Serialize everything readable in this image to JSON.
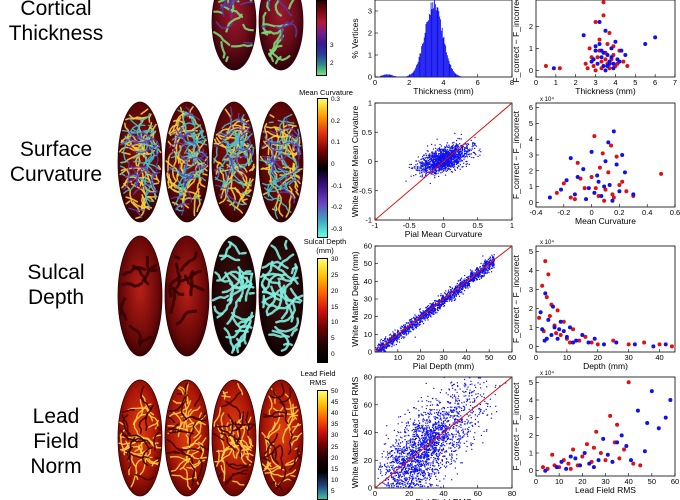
{
  "rows": [
    {
      "label_lines": [
        "Cortical",
        "Thickness"
      ]
    },
    {
      "label_lines": [
        "Surface",
        "Curvature"
      ]
    },
    {
      "label_lines": [
        "Sulcal",
        "Depth"
      ]
    },
    {
      "label_lines": [
        "Lead",
        "Field",
        "Norm"
      ]
    }
  ],
  "colorbars": [
    {
      "title": "",
      "ticks": [
        "3",
        "2"
      ],
      "colors": [
        "#300000",
        "#7a0a10",
        "#b3183c",
        "#7a1a8a",
        "#3a1b8c",
        "#2a3a9a",
        "#2a8a8a",
        "#7adf7a"
      ]
    },
    {
      "title": "Mean Curvature",
      "ticks": [
        "0.3",
        "0.2",
        "0.1",
        "0",
        "-0.1",
        "-0.2",
        "-0.3"
      ],
      "colors": [
        "#ffff60",
        "#ff9a00",
        "#e03010",
        "#7a0000",
        "#000000",
        "#3a1080",
        "#6a40c0",
        "#40a0c0",
        "#60ffe0"
      ]
    },
    {
      "title": "Sulcal Depth (mm)",
      "ticks": [
        "30",
        "25",
        "20",
        "15",
        "10",
        "5",
        "0"
      ],
      "colors": [
        "#ffff70",
        "#ffc000",
        "#ff6000",
        "#d01010",
        "#700000",
        "#200000",
        "#000000"
      ]
    },
    {
      "title": "Lead Field RMS",
      "ticks": [
        "50",
        "45",
        "40",
        "35",
        "30",
        "25",
        "20",
        "15",
        "10",
        "5"
      ],
      "colors": [
        "#ffff70",
        "#ffc000",
        "#ff6000",
        "#d01010",
        "#700000",
        "#200000",
        "#000000",
        "#204080",
        "#40c0a0"
      ]
    }
  ],
  "chart_data": [
    {
      "type": "bar",
      "title": "",
      "xlabel": "Thickness (mm)",
      "ylabel": "% Vertices",
      "x_ticks": [
        "0",
        "2",
        "4",
        "6",
        "8"
      ],
      "y_ticks": [
        "0",
        "1",
        "2",
        "3"
      ],
      "xlim": [
        0,
        8
      ],
      "ylim": [
        0,
        3.5
      ],
      "bin_width": 0.05,
      "distribution": {
        "mean": 3.4,
        "sd": 0.52,
        "peak": 3.3
      },
      "color": "#1010ee"
    },
    {
      "type": "scatter",
      "xlabel": "Thickness (mm)",
      "ylabel": "F_correct − F_incorrect",
      "x_ticks": [
        "0",
        "1",
        "2",
        "3",
        "4",
        "5",
        "6",
        "7"
      ],
      "y_ticks": [
        "0",
        "1",
        "2"
      ],
      "xlim": [
        0,
        7
      ],
      "ylim": [
        -0.3,
        3.2
      ],
      "series": [
        {
          "color": "#e01010",
          "x": [
            0.5,
            1.2,
            2.5,
            2.7,
            2.9,
            3.0,
            3.1,
            3.2,
            3.3,
            3.4,
            3.5,
            3.6,
            3.7,
            3.8,
            3.9,
            4.0,
            4.2,
            4.4,
            4.6,
            3.0,
            3.3,
            3.6,
            3.9,
            2.8,
            3.4,
            4.1,
            3.7,
            3.2,
            3.5,
            2.6
          ],
          "y": [
            0.2,
            0.1,
            0.3,
            1.0,
            0.2,
            2.2,
            0.6,
            1.4,
            0.1,
            2.5,
            0.8,
            0.3,
            1.7,
            0.5,
            1.1,
            0.2,
            0.9,
            0.4,
            0.2,
            0.0,
            0.4,
            1.2,
            0.7,
            0.6,
            3.1,
            0.3,
            0.1,
            0.9,
            0.5,
            0.1
          ]
        },
        {
          "color": "#1010ee",
          "x": [
            0.9,
            2.4,
            2.8,
            3.0,
            3.1,
            3.2,
            3.3,
            3.4,
            3.5,
            3.6,
            3.7,
            3.8,
            3.9,
            4.0,
            4.1,
            4.3,
            4.5,
            5.5,
            6.0,
            3.2,
            3.5,
            3.8,
            3.3,
            3.6,
            2.9,
            4.2,
            3.0,
            3.7,
            3.4,
            3.9
          ],
          "y": [
            0.1,
            1.6,
            0.4,
            0.9,
            0.3,
            1.2,
            0.6,
            0.2,
            1.8,
            0.7,
            0.4,
            1.0,
            0.3,
            1.3,
            0.5,
            0.9,
            0.7,
            1.2,
            1.5,
            2.2,
            0.0,
            0.6,
            0.9,
            0.2,
            0.5,
            0.4,
            1.1,
            0.3,
            0.8,
            0.1
          ]
        }
      ]
    },
    {
      "type": "scatter",
      "xlabel": "Pial Mean Curvature",
      "ylabel": "White Matter Mean Curvature",
      "x_ticks": [
        "-1",
        "-0.5",
        "0",
        "0.5",
        "1"
      ],
      "y_ticks": [
        "-1",
        "-0.5",
        "0",
        "0.5",
        "1"
      ],
      "xlim": [
        -1,
        1
      ],
      "ylim": [
        -1,
        1
      ],
      "cloud": {
        "cx": 0.0,
        "cy": 0.05,
        "sx": 0.18,
        "sy": 0.12,
        "rho": 0.55
      },
      "reference_line": "y = x",
      "series": [
        {
          "color": "#1010ee"
        }
      ]
    },
    {
      "type": "scatter",
      "xlabel": "Mean Curvature",
      "ylabel": "F_correct − F_incorrect",
      "exponent": "x 10⁴",
      "x_ticks": [
        "-0.4",
        "-0.2",
        "0",
        "0.2",
        "0.4",
        "0.6"
      ],
      "y_ticks": [
        "0",
        "1",
        "2",
        "3",
        "4",
        "5",
        "6"
      ],
      "xlim": [
        -0.4,
        0.6
      ],
      "ylim": [
        -0.3,
        6.3
      ],
      "series": [
        {
          "color": "#e01010",
          "x": [
            -0.25,
            -0.2,
            -0.15,
            -0.1,
            -0.05,
            0.0,
            0.02,
            0.05,
            0.08,
            0.1,
            0.12,
            0.15,
            0.18,
            0.2,
            0.25,
            0.3,
            0.5,
            -0.12,
            0.06,
            0.14,
            0.22,
            -0.08,
            0.03,
            0.16,
            0.09
          ],
          "y": [
            0.6,
            1.2,
            0.3,
            2.5,
            0.9,
            1.6,
            4.2,
            0.4,
            3.1,
            0.8,
            1.9,
            0.5,
            2.9,
            1.1,
            0.7,
            0.4,
            1.8,
            0.2,
            2.2,
            3.6,
            1.3,
            1.5,
            0.9,
            0.3,
            0.1
          ]
        },
        {
          "color": "#1010ee",
          "x": [
            -0.3,
            -0.22,
            -0.18,
            -0.12,
            -0.06,
            -0.02,
            0.0,
            0.04,
            0.07,
            0.1,
            0.13,
            0.16,
            0.2,
            0.24,
            0.3,
            -0.15,
            0.05,
            0.12,
            0.18,
            -0.04,
            0.02,
            0.09,
            0.15,
            0.22,
            -0.1
          ],
          "y": [
            0.3,
            0.8,
            1.4,
            0.5,
            2.1,
            0.9,
            3.2,
            1.7,
            0.4,
            2.6,
            1.1,
            4.5,
            0.7,
            1.9,
            0.5,
            2.8,
            1.3,
            3.8,
            2.4,
            0.2,
            0.6,
            1.0,
            0.1,
            3.0,
            1.6
          ]
        }
      ]
    },
    {
      "type": "scatter",
      "xlabel": "Pial Depth (mm)",
      "ylabel": "White Matter Depth (mm)",
      "x_ticks": [
        "10",
        "20",
        "30",
        "40",
        "50",
        "60"
      ],
      "y_ticks": [
        "0",
        "10",
        "20",
        "30",
        "40",
        "50",
        "60"
      ],
      "xlim": [
        0,
        60
      ],
      "ylim": [
        0,
        60
      ],
      "cloud": {
        "slope": 1.0,
        "intercept": 0.0,
        "xmax": 52,
        "spread": 1.8
      },
      "reference_line": "y = x",
      "series": [
        {
          "color": "#1010ee"
        }
      ]
    },
    {
      "type": "scatter",
      "xlabel": "Depth (mm)",
      "ylabel": "F_correct − F_incorrect",
      "exponent": "x 10⁴",
      "x_ticks": [
        "0",
        "10",
        "20",
        "30",
        "40"
      ],
      "y_ticks": [
        "0",
        "1",
        "2",
        "3",
        "4",
        "5"
      ],
      "xlim": [
        0,
        45
      ],
      "ylim": [
        -0.3,
        5.3
      ],
      "series": [
        {
          "color": "#e01010",
          "x": [
            1,
            2,
            3,
            3.5,
            4,
            5,
            6,
            7,
            8,
            9,
            10,
            12,
            14,
            16,
            18,
            20,
            25,
            30,
            35,
            40,
            44,
            2.5,
            4.5,
            6.5,
            11
          ],
          "y": [
            1.5,
            3.2,
            4.5,
            2.6,
            3.8,
            2.2,
            1.1,
            1.9,
            0.6,
            1.3,
            0.4,
            0.9,
            0.3,
            0.5,
            0.2,
            0.1,
            0.3,
            0.1,
            0.2,
            0.1,
            0.0,
            0.8,
            1.6,
            0.7,
            0.2
          ]
        },
        {
          "color": "#1010ee",
          "x": [
            1.5,
            2,
            3,
            4,
            5,
            5.5,
            6,
            7,
            8,
            9,
            10,
            11,
            13,
            15,
            17,
            19,
            22,
            26,
            32,
            38,
            42,
            3.5,
            7.5,
            12,
            2.8
          ],
          "y": [
            1.8,
            0.9,
            2.8,
            1.4,
            0.6,
            2.1,
            1.0,
            0.4,
            1.3,
            0.8,
            0.5,
            1.0,
            0.3,
            0.6,
            0.2,
            0.4,
            0.1,
            0.2,
            0.1,
            0.0,
            0.1,
            0.4,
            0.9,
            0.2,
            0.3
          ]
        }
      ]
    },
    {
      "type": "scatter",
      "xlabel": "Pial Field RMS",
      "ylabel": "White Matter Lead Field RMS",
      "x_ticks": [
        "0",
        "20",
        "40",
        "60",
        "80"
      ],
      "y_ticks": [
        "0",
        "20",
        "40",
        "60",
        "80"
      ],
      "xlim": [
        0,
        80
      ],
      "ylim": [
        0,
        80
      ],
      "cloud": {
        "slope": 1.0,
        "spread": 14
      },
      "reference_line": "y = x",
      "series": [
        {
          "color": "#1010ee"
        }
      ]
    },
    {
      "type": "scatter",
      "xlabel": "Lead Field RMS",
      "ylabel": "F_correct − F_incorrect",
      "exponent": "x 10⁴",
      "x_ticks": [
        "0",
        "10",
        "20",
        "30",
        "40",
        "50",
        "60"
      ],
      "y_ticks": [
        "0",
        "1",
        "2",
        "3",
        "4",
        "5"
      ],
      "xlim": [
        0,
        60
      ],
      "ylim": [
        -0.3,
        5.3
      ],
      "series": [
        {
          "color": "#e01010",
          "x": [
            5,
            8,
            10,
            12,
            14,
            16,
            18,
            20,
            22,
            24,
            26,
            28,
            30,
            32,
            34,
            36,
            38,
            40,
            42,
            45,
            3,
            7,
            15,
            25,
            35
          ],
          "y": [
            0.1,
            0.3,
            0.2,
            0.6,
            0.4,
            1.2,
            0.3,
            0.8,
            1.5,
            0.5,
            2.2,
            1.0,
            0.6,
            3.1,
            1.6,
            0.7,
            1.2,
            5.0,
            0.4,
            0.3,
            0.2,
            0.9,
            0.1,
            1.3,
            2.6
          ]
        },
        {
          "color": "#1010ee",
          "x": [
            4,
            9,
            11,
            13,
            17,
            19,
            21,
            23,
            27,
            29,
            31,
            33,
            37,
            39,
            41,
            44,
            47,
            50,
            53,
            56,
            58,
            15,
            25,
            35,
            48
          ],
          "y": [
            0.0,
            0.2,
            0.5,
            0.1,
            0.7,
            0.3,
            1.0,
            0.4,
            0.6,
            1.8,
            0.9,
            0.5,
            2.0,
            1.4,
            0.6,
            3.4,
            1.1,
            4.5,
            2.4,
            3.0,
            4.0,
            0.8,
            0.2,
            1.6,
            2.7
          ]
        }
      ]
    }
  ]
}
